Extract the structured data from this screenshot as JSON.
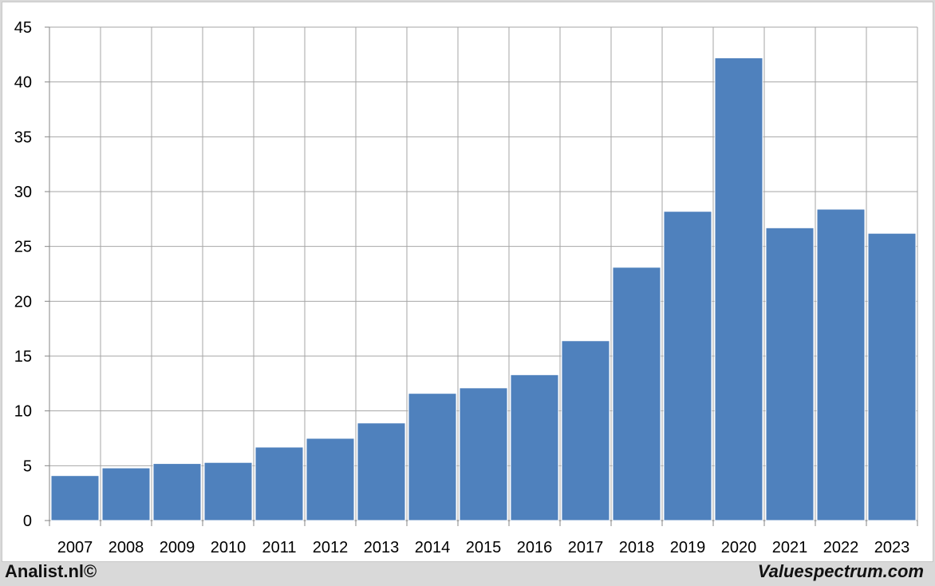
{
  "chart_data": {
    "type": "bar",
    "categories": [
      "2007",
      "2008",
      "2009",
      "2010",
      "2011",
      "2012",
      "2013",
      "2014",
      "2015",
      "2016",
      "2017",
      "2018",
      "2019",
      "2020",
      "2021",
      "2022",
      "2023"
    ],
    "values": [
      4.1,
      4.8,
      5.2,
      5.3,
      6.7,
      7.5,
      8.9,
      11.6,
      12.1,
      13.3,
      16.4,
      23.1,
      28.2,
      42.2,
      26.7,
      28.4,
      26.2
    ],
    "title": "",
    "xlabel": "",
    "ylabel": "",
    "ylim": [
      0,
      45
    ],
    "yticks": [
      "0",
      "5",
      "10",
      "15",
      "20",
      "25",
      "30",
      "35",
      "40",
      "45"
    ],
    "grid": true,
    "bar_color": "#4f81bd"
  },
  "footer": {
    "left": "Analist.nl©",
    "right": "Valuespectrum.com"
  }
}
